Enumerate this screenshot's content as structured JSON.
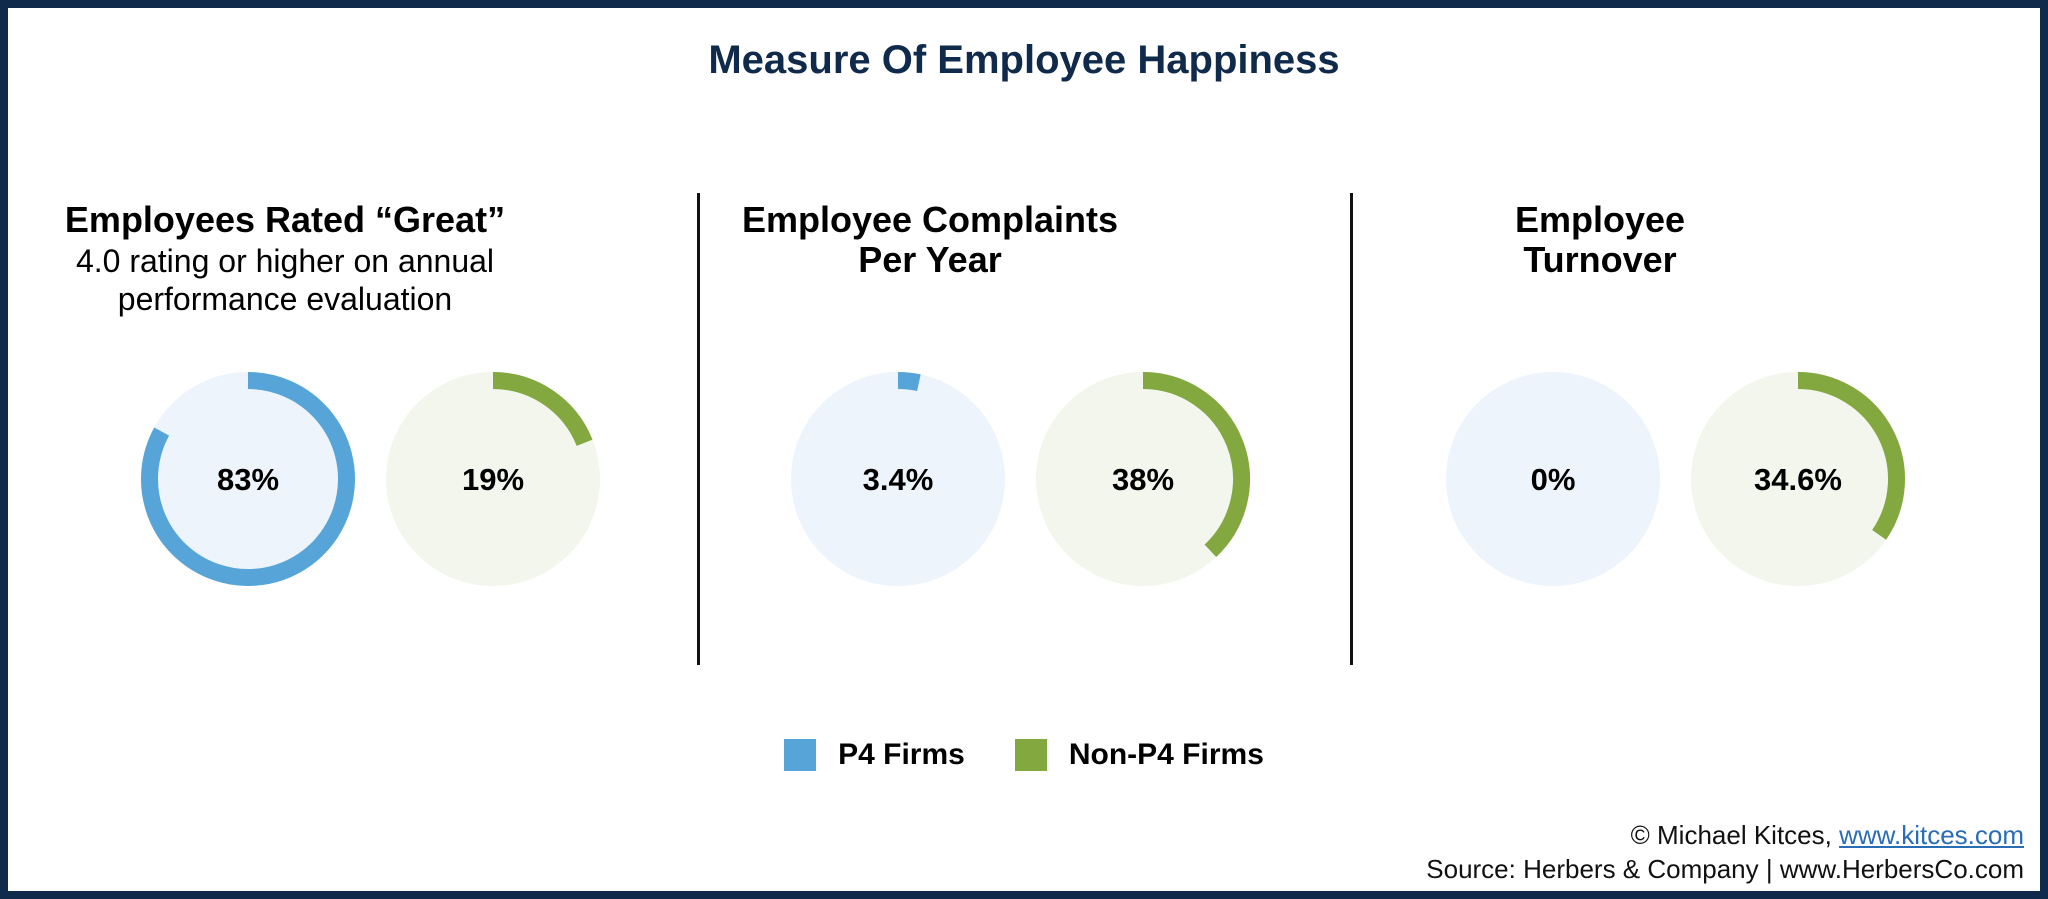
{
  "chart_data": {
    "type": "donut",
    "title": "Measure Of Employee Happiness",
    "panels": [
      {
        "title": "Employees Rated “Great”",
        "subtitle": "4.0 rating or higher on annual performance evaluation",
        "values": [
          {
            "series": "P4 Firms",
            "value": 83,
            "label": "83%"
          },
          {
            "series": "Non-P4 Firms",
            "value": 19,
            "label": "19%"
          }
        ]
      },
      {
        "title": "Employee Complaints Per Year",
        "subtitle": "",
        "values": [
          {
            "series": "P4 Firms",
            "value": 3.4,
            "label": "3.4%"
          },
          {
            "series": "Non-P4 Firms",
            "value": 38,
            "label": "38%"
          }
        ]
      },
      {
        "title": "Employee Turnover",
        "subtitle": "",
        "values": [
          {
            "series": "P4 Firms",
            "value": 0,
            "label": "0%"
          },
          {
            "series": "Non-P4 Firms",
            "value": 34.6,
            "label": "34.6%"
          }
        ]
      }
    ],
    "legend": [
      {
        "name": "P4 Firms",
        "color": "#57a5d8"
      },
      {
        "name": "Non-P4 Firms",
        "color": "#82a83f"
      }
    ],
    "legend_placement": "bottom",
    "track_colors": {
      "P4 Firms": "#edf4fb",
      "Non-P4 Firms": "#f2f6ec"
    }
  },
  "footer": {
    "copyright": "© Michael Kitces, ",
    "link": "www.kitces.com",
    "source": "Source: Herbers & Company | www.HerbersCo.com"
  },
  "colors": {
    "border": "#0f2a4a",
    "title": "#0f2a4a"
  }
}
